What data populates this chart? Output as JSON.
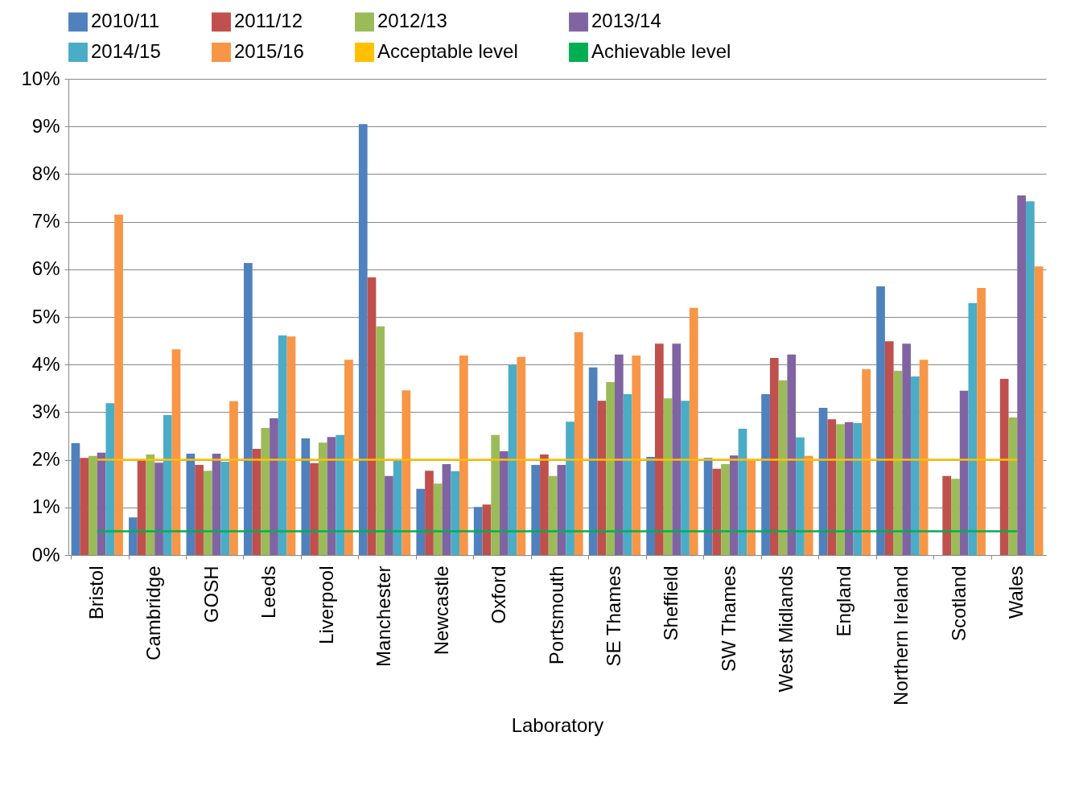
{
  "chart_data": {
    "type": "bar",
    "xlabel": "Laboratory",
    "categories": [
      "Bristol",
      "Cambridge",
      "GOSH",
      "Leeds",
      "Liverpool",
      "Manchester",
      "Newcastle",
      "Oxford",
      "Portsmouth",
      "SE Thames",
      "Sheffield",
      "SW Thames",
      "West Midlands",
      "England",
      "Northern Ireland",
      "Scotland",
      "Wales"
    ],
    "series": [
      {
        "name": "2010/11",
        "color": "#4f81bd",
        "values": [
          2.35,
          0.79,
          2.13,
          6.13,
          2.45,
          9.05,
          1.39,
          1.01,
          1.89,
          3.94,
          2.06,
          2.04,
          3.38,
          3.09,
          5.64,
          null,
          null
        ]
      },
      {
        "name": "2011/12",
        "color": "#c0504d",
        "values": [
          2.04,
          1.98,
          1.89,
          2.23,
          1.93,
          5.83,
          1.77,
          1.06,
          2.11,
          3.24,
          4.44,
          1.81,
          4.14,
          2.85,
          4.49,
          1.66,
          3.7
        ]
      },
      {
        "name": "2012/13",
        "color": "#9bbb59",
        "values": [
          2.08,
          2.11,
          1.77,
          2.67,
          2.36,
          4.8,
          1.5,
          2.52,
          1.66,
          3.63,
          3.29,
          1.91,
          3.67,
          2.75,
          3.87,
          1.6,
          2.89
        ]
      },
      {
        "name": "2013/14",
        "color": "#8064a2",
        "values": [
          2.15,
          1.94,
          2.13,
          2.87,
          2.48,
          1.66,
          1.91,
          2.18,
          1.89,
          4.21,
          4.44,
          2.09,
          4.21,
          2.79,
          4.44,
          3.45,
          7.55
        ]
      },
      {
        "name": "2014/15",
        "color": "#4bacc6",
        "values": [
          3.19,
          2.94,
          1.96,
          4.61,
          2.52,
          1.98,
          1.76,
          4.0,
          2.8,
          3.38,
          3.24,
          2.65,
          2.47,
          2.77,
          3.75,
          5.29,
          7.43
        ]
      },
      {
        "name": "2015/16",
        "color": "#f79646",
        "values": [
          7.15,
          4.32,
          3.23,
          4.59,
          4.1,
          3.46,
          4.19,
          4.16,
          4.68,
          4.19,
          5.19,
          2.0,
          2.08,
          3.9,
          4.1,
          5.61,
          6.06
        ]
      },
      {
        "name": "Acceptable level",
        "type": "line",
        "color": "#ffc000",
        "values": [
          2,
          2,
          2,
          2,
          2,
          2,
          2,
          2,
          2,
          2,
          2,
          2,
          2,
          2,
          2,
          2,
          2
        ]
      },
      {
        "name": "Achievable level",
        "type": "line",
        "color": "#00b050",
        "values": [
          0.5,
          0.5,
          0.5,
          0.5,
          0.5,
          0.5,
          0.5,
          0.5,
          0.5,
          0.5,
          0.5,
          0.5,
          0.5,
          0.5,
          0.5,
          0.5,
          0.5
        ]
      }
    ],
    "ylim": [
      0,
      10
    ],
    "yticks": [
      {
        "value": 0,
        "label": "0%"
      },
      {
        "value": 1,
        "label": "1%"
      },
      {
        "value": 2,
        "label": "2%"
      },
      {
        "value": 3,
        "label": "3%"
      },
      {
        "value": 4,
        "label": "4%"
      },
      {
        "value": 5,
        "label": "5%"
      },
      {
        "value": 6,
        "label": "6%"
      },
      {
        "value": 7,
        "label": "7%"
      },
      {
        "value": 8,
        "label": "8%"
      },
      {
        "value": 9,
        "label": "9%"
      },
      {
        "value": 10,
        "label": "10%"
      }
    ],
    "grid": "y",
    "legend": "top"
  }
}
